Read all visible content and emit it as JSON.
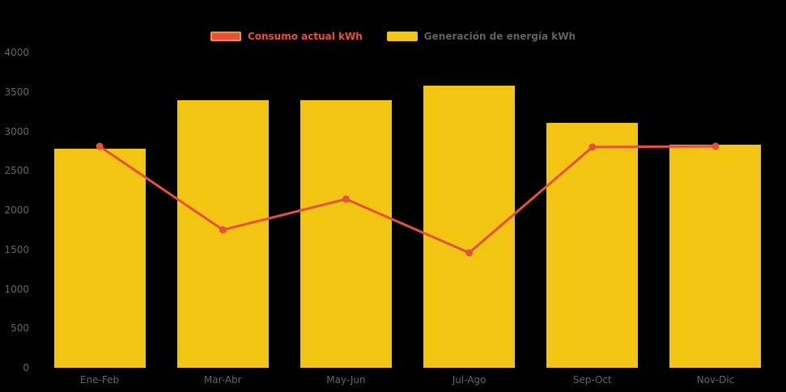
{
  "legend": {
    "items": [
      {
        "label": "Consumo actual kWh",
        "color": "#e8503c",
        "text_color": "#e8503c"
      },
      {
        "label": "Generación de energía kWh",
        "color": "#f3c513",
        "text_color": "#616161"
      }
    ]
  },
  "chart_data": {
    "type": "bar",
    "title": "",
    "categories": [
      "Ene-Feb",
      "Mar-Abr",
      "May-Jun",
      "Jul-Ago",
      "Sep-Oct",
      "Nov-Dic"
    ],
    "series": [
      {
        "name": "Generación de energía kWh",
        "type": "bar",
        "color": "#f3c513",
        "values": [
          2780,
          3390,
          3390,
          3580,
          3110,
          2830
        ]
      },
      {
        "name": "Consumo actual kWh",
        "type": "line",
        "color": "#e8503c",
        "values": [
          2810,
          1750,
          2140,
          1460,
          2800,
          2810
        ]
      }
    ],
    "xlabel": "",
    "ylabel": "",
    "ylim": [
      0,
      4000
    ],
    "yticks": [
      0,
      500,
      1000,
      1500,
      2000,
      2500,
      3000,
      3500,
      4000
    ],
    "grid": false,
    "legend_position": "top",
    "background_color": "#000000",
    "axis_text_color": "#666666"
  }
}
